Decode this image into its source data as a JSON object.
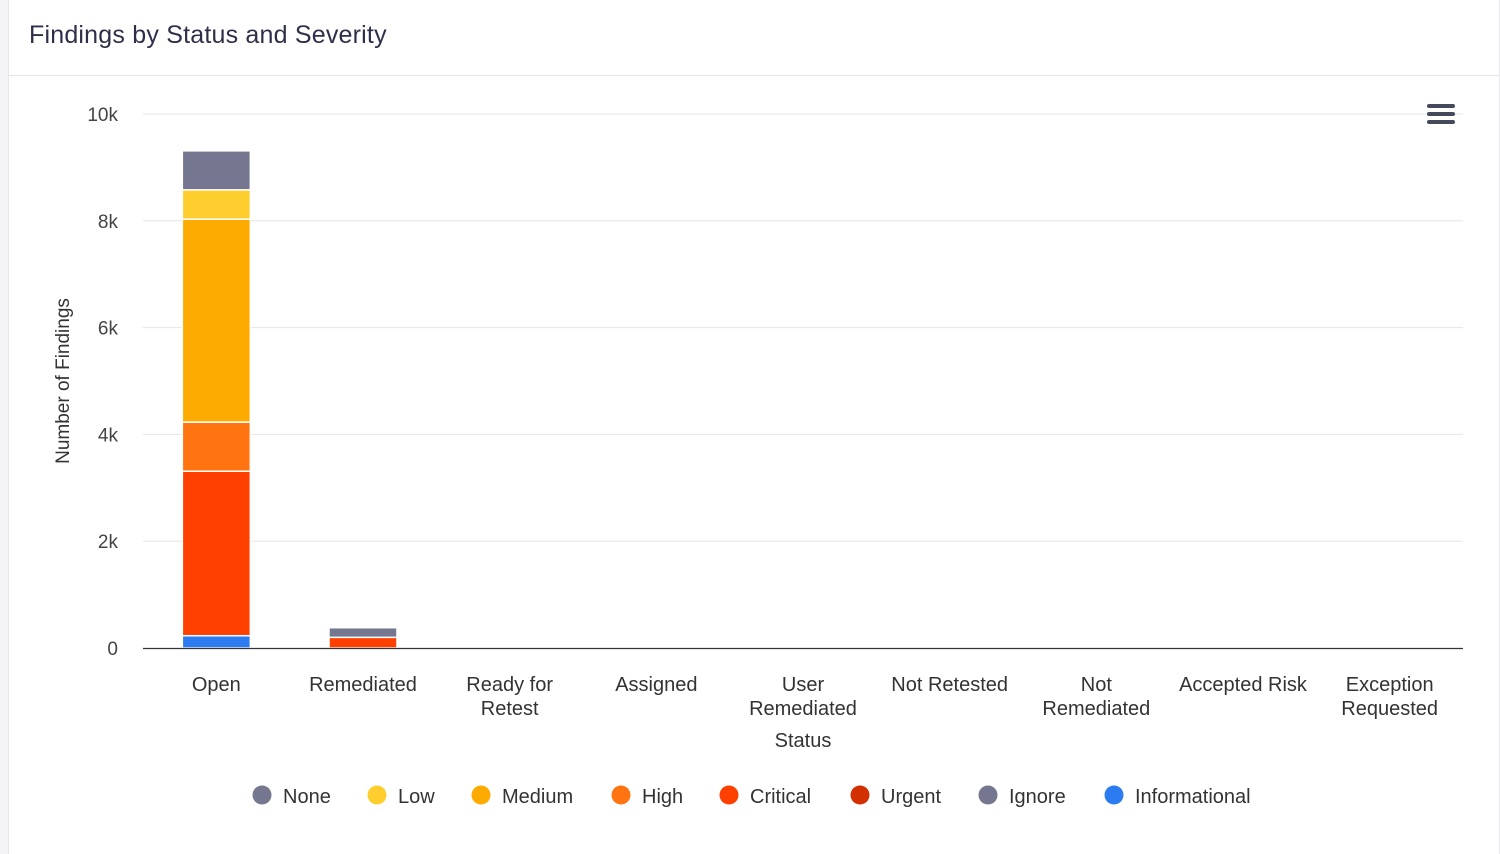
{
  "card": {
    "title": "Findings by Status and Severity"
  },
  "menu": {
    "icon": "hamburger-menu-icon"
  },
  "chart_data": {
    "type": "bar",
    "stacked": true,
    "title": "Findings by Status and Severity",
    "xlabel": "Status",
    "ylabel": "Number of Findings",
    "ylim": [
      0,
      10000
    ],
    "yticks": [
      0,
      2000,
      4000,
      6000,
      8000,
      10000
    ],
    "ytick_labels": [
      "0",
      "2k",
      "4k",
      "6k",
      "8k",
      "10k"
    ],
    "grid": true,
    "legend_position": "bottom-center",
    "categories": [
      [
        "Open"
      ],
      [
        "Remediated"
      ],
      [
        "Ready for",
        "Retest"
      ],
      [
        "Assigned"
      ],
      [
        "User",
        "Remediated"
      ],
      [
        "Not Retested"
      ],
      [
        "Not",
        "Remediated"
      ],
      [
        "Accepted Risk"
      ],
      [
        "Exception",
        "Requested"
      ]
    ],
    "series": [
      {
        "name": "None",
        "color": "#75768f",
        "values": [
          0,
          0,
          0,
          0,
          0,
          0,
          0,
          0,
          0
        ]
      },
      {
        "name": "Low",
        "color": "#fece2f",
        "values": [
          550,
          0,
          0,
          0,
          0,
          0,
          0,
          0,
          0
        ]
      },
      {
        "name": "Medium",
        "color": "#fdab00",
        "values": [
          3800,
          0,
          0,
          0,
          0,
          0,
          0,
          0,
          0
        ]
      },
      {
        "name": "High",
        "color": "#ff7310",
        "values": [
          920,
          0,
          0,
          0,
          0,
          0,
          0,
          0,
          0
        ]
      },
      {
        "name": "Critical",
        "color": "#ff4000",
        "values": [
          3080,
          200,
          0,
          0,
          0,
          0,
          0,
          0,
          0
        ]
      },
      {
        "name": "Urgent",
        "color": "#d23000",
        "values": [
          0,
          0,
          0,
          0,
          0,
          0,
          0,
          0,
          0
        ]
      },
      {
        "name": "Ignore",
        "color": "#75768f",
        "values": [
          730,
          180,
          0,
          0,
          0,
          0,
          0,
          0,
          0
        ]
      },
      {
        "name": "Informational",
        "color": "#2d7bf0",
        "values": [
          230,
          0,
          0,
          0,
          0,
          0,
          0,
          0,
          0
        ]
      }
    ],
    "stack_order": [
      "Informational",
      "Critical",
      "High",
      "Medium",
      "Low",
      "Ignore"
    ]
  }
}
